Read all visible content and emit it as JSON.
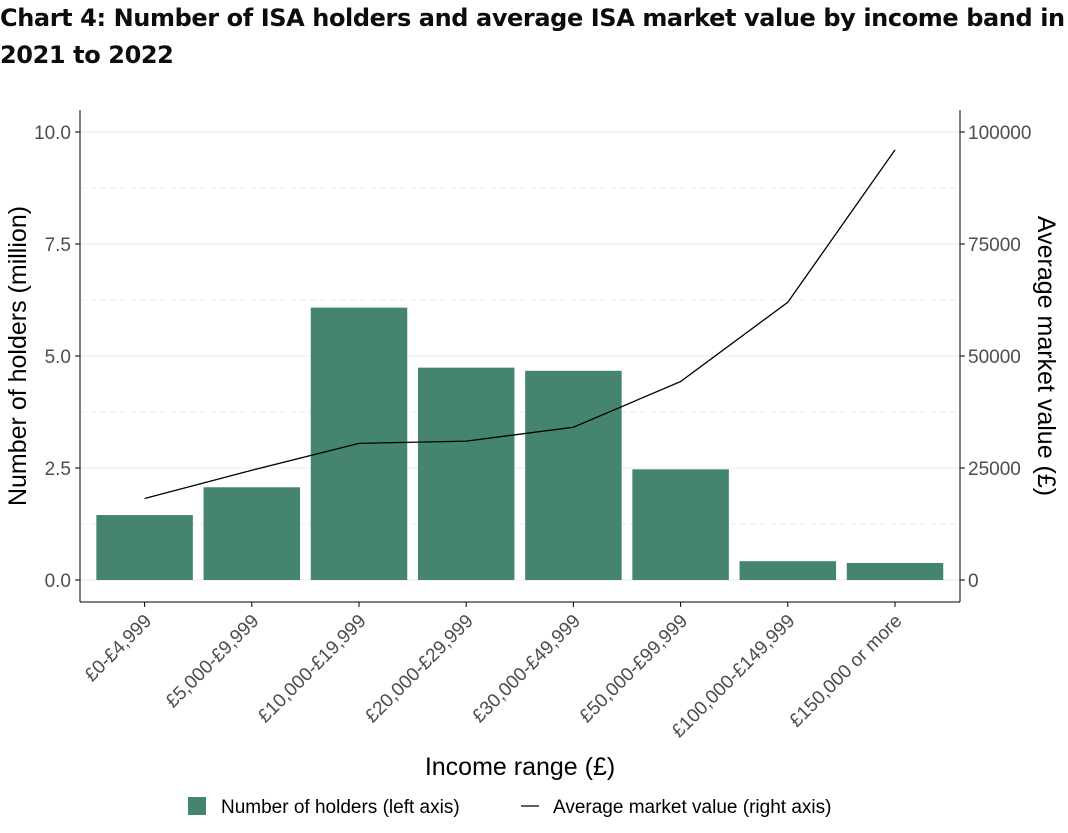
{
  "title_line1": "Chart 4: Number of ISA holders and average ISA market value by income band in",
  "title_line2": "2021 to 2022",
  "colors": {
    "bar": "#458470",
    "line": "#000000",
    "grid": "#ebebeb",
    "axis": "#000000"
  },
  "chart_data": {
    "type": "bar",
    "title": "Chart 4: Number of ISA holders and average ISA market value by income band in 2021 to 2022",
    "categories": [
      "£0-£4,999",
      "£5,000-£9,999",
      "£10,000-£19,999",
      "£20,000-£29,999",
      "£30,000-£49,999",
      "£50,000-£99,999",
      "£100,000-£149,999",
      "£150,000 or more"
    ],
    "series": [
      {
        "name": "Number of holders (left axis)",
        "type": "bar",
        "axis": "left",
        "values": [
          1.45,
          2.07,
          6.08,
          4.74,
          4.67,
          2.47,
          0.42,
          0.38
        ]
      },
      {
        "name": "Average market value (right axis)",
        "type": "line",
        "axis": "right",
        "values": [
          18200,
          24500,
          30500,
          31000,
          34100,
          44300,
          62000,
          96000
        ]
      }
    ],
    "xlabel": "Income range (£)",
    "ylabel": "Number of holders (million)",
    "ylabel_right": "Average market value (£)",
    "ylim": [
      0,
      10
    ],
    "ylim_right": [
      0,
      100000
    ],
    "yticks": [
      "0.0",
      "2.5",
      "5.0",
      "7.5",
      "10.0"
    ],
    "yticks_right": [
      "0",
      "25000",
      "50000",
      "75000",
      "100000"
    ],
    "legend_position": "bottom",
    "grid": true
  }
}
